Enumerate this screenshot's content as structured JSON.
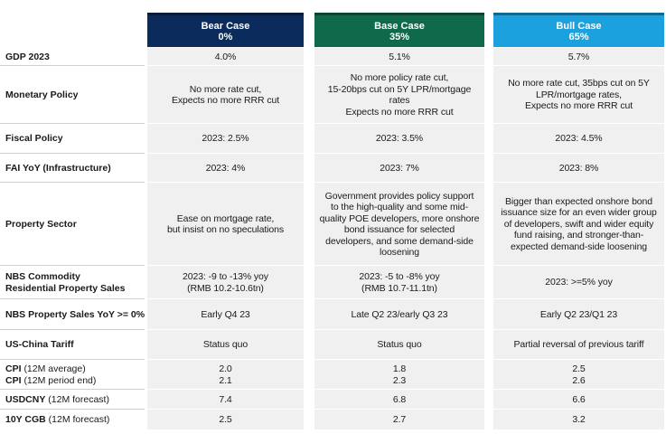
{
  "table": {
    "columns": [
      {
        "title": "Bear Case",
        "probability": "0%",
        "color": "#0b2b5c"
      },
      {
        "title": "Base Case",
        "probability": "35%",
        "color": "#0f6a4c"
      },
      {
        "title": "Bull Case",
        "probability": "65%",
        "color": "#1aa1de"
      }
    ],
    "rows": [
      {
        "labels": [
          {
            "label": "GDP 2023"
          }
        ],
        "cells": [
          [
            "4.0%"
          ],
          [
            "5.1%"
          ],
          [
            "5.7%"
          ]
        ]
      },
      {
        "labels": [
          {
            "label": "Monetary Policy"
          }
        ],
        "cells": [
          [
            "No more rate cut,",
            "Expects no more RRR cut"
          ],
          [
            "No more policy rate cut,",
            "15-20bps cut on 5Y LPR/mortgage",
            "rates",
            "Expects no more RRR cut"
          ],
          [
            "No more rate cut, 35bps cut on 5Y",
            "LPR/mortgage rates,",
            "Expects no more RRR cut"
          ]
        ]
      },
      {
        "labels": [
          {
            "label": "Fiscal Policy"
          }
        ],
        "cells": [
          [
            "2023: 2.5%"
          ],
          [
            "2023: 3.5%"
          ],
          [
            "2023: 4.5%"
          ]
        ]
      },
      {
        "labels": [
          {
            "label": "FAI YoY (Infrastructure)"
          }
        ],
        "cells": [
          [
            "2023: 4%"
          ],
          [
            "2023: 7%"
          ],
          [
            "2023: 8%"
          ]
        ]
      },
      {
        "labels": [
          {
            "label": "Property Sector"
          }
        ],
        "cells": [
          [
            "Ease on mortgage rate,",
            "but insist on no speculations"
          ],
          [
            "Government provides policy support",
            "to the high-quality and some mid-",
            "quality POE developers, more onshore",
            "bond issuance for selected",
            "developers, and some demand-side",
            "loosening"
          ],
          [
            "Bigger than expected onshore bond",
            "issuance size for an even wider group",
            "of developers, swift and wider equity",
            "fund raising, and stronger-than-",
            "expected demand-side loosening"
          ]
        ]
      },
      {
        "labels": [
          {
            "label": "NBS Commodity"
          },
          {
            "label": "Residential Property Sales"
          }
        ],
        "cells": [
          [
            "2023: -9 to -13% yoy",
            "(RMB 10.2-10.6tn)"
          ],
          [
            "2023: -5 to -8% yoy",
            "(RMB 10.7-11.1tn)"
          ],
          [
            "2023: >=5% yoy"
          ]
        ]
      },
      {
        "labels": [
          {
            "label": "NBS Property Sales YoY >= 0%"
          }
        ],
        "cells": [
          [
            "Early Q4 23"
          ],
          [
            "Late Q2 23/early Q3 23"
          ],
          [
            "Early Q2 23/Q1 23"
          ]
        ]
      },
      {
        "labels": [
          {
            "label": "US-China Tariff"
          }
        ],
        "cells": [
          [
            "Status quo"
          ],
          [
            "Status quo"
          ],
          [
            "Partial reversal of previous tariff"
          ]
        ]
      },
      {
        "labels": [
          {
            "label": "CPI",
            "note": "(12M average)"
          },
          {
            "label": "CPI",
            "note": "(12M period end)"
          }
        ],
        "cells": [
          [
            "2.0",
            "2.1"
          ],
          [
            "1.8",
            "2.3"
          ],
          [
            "2.5",
            "2.6"
          ]
        ]
      },
      {
        "labels": [
          {
            "label": "USDCNY",
            "note": "(12M forecast)"
          }
        ],
        "cells": [
          [
            "7.4"
          ],
          [
            "6.8"
          ],
          [
            "6.6"
          ]
        ]
      },
      {
        "labels": [
          {
            "label": "10Y CGB",
            "note": "(12M forecast)"
          }
        ],
        "cells": [
          [
            "2.5"
          ],
          [
            "2.7"
          ],
          [
            "3.2"
          ]
        ]
      }
    ]
  }
}
